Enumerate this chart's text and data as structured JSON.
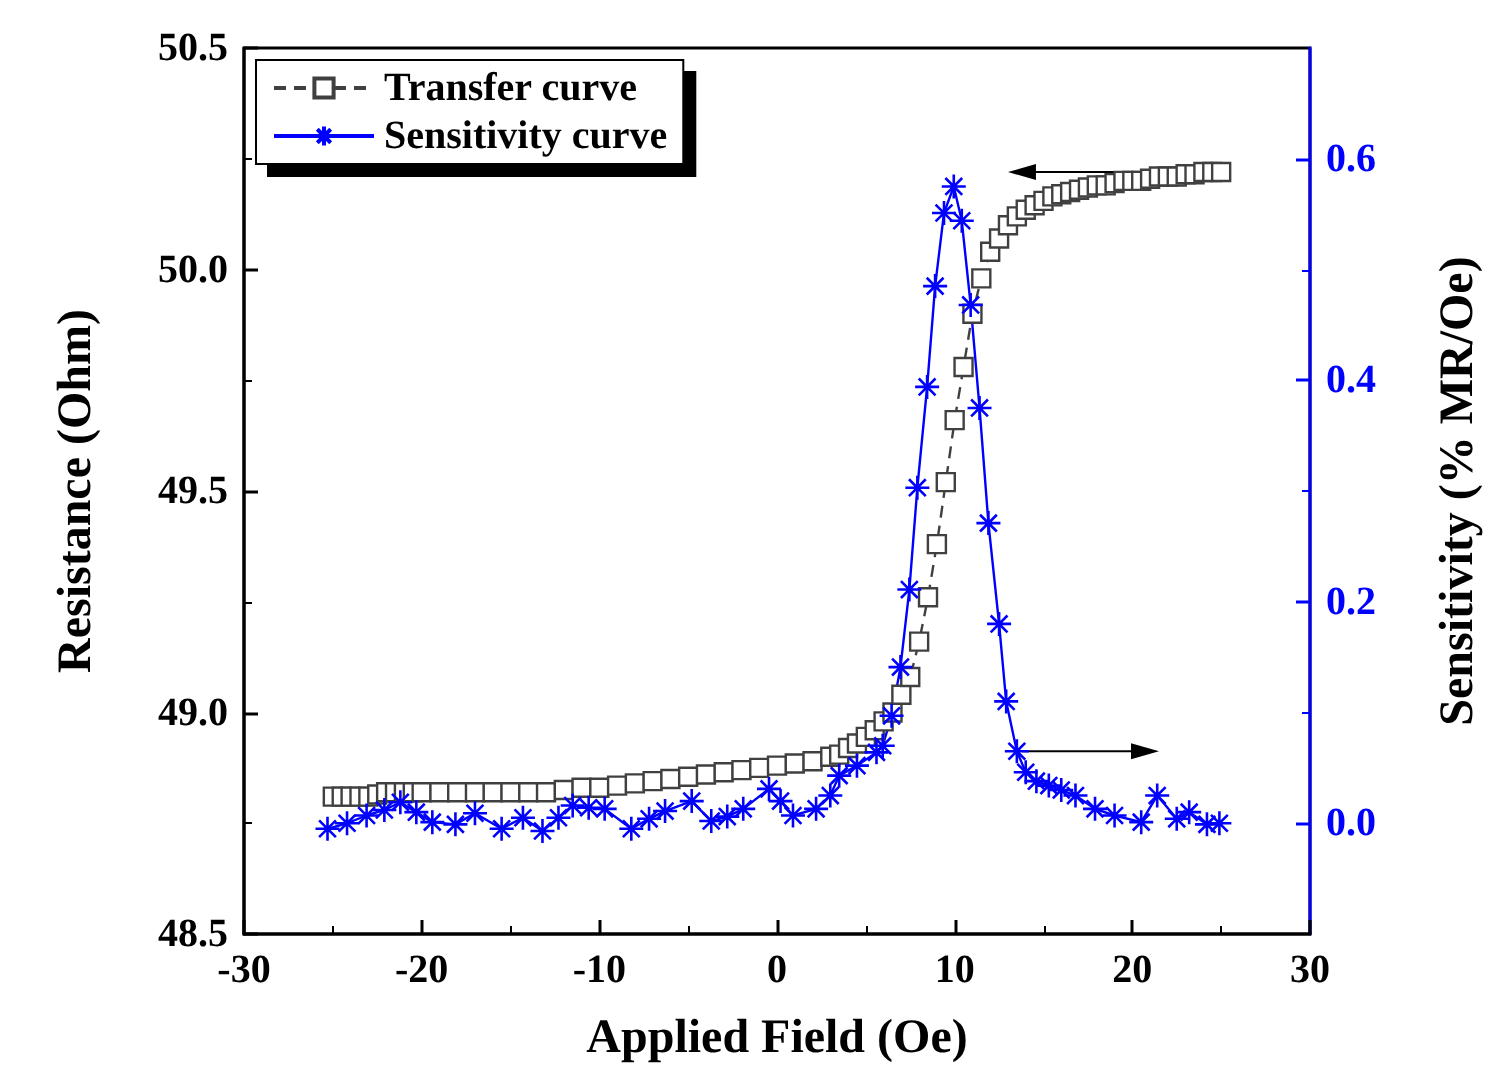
{
  "chart_data": {
    "type": "line",
    "xlabel": "Applied Field (Oe)",
    "ylabel": "Resistance (Ohm)",
    "y2label": "Sensitivity (% MR/Oe)",
    "xlim": [
      -30,
      30
    ],
    "xticks": [
      -30,
      -20,
      -10,
      0,
      10,
      20,
      30
    ],
    "ylim": [
      48.5,
      50.5
    ],
    "yticks": [
      48.5,
      {
        "value": 49,
        "label": "49.0"
      },
      49.5,
      {
        "value": 50,
        "label": "50.0"
      },
      50.5
    ],
    "y2lim": [
      -0.1,
      0.7
    ],
    "y2ticks": [
      {
        "value": 0,
        "label": "0.0"
      },
      0.2,
      0.4,
      0.6
    ],
    "legend": "top left",
    "grid": false,
    "series": [
      {
        "name": "Transfer curve",
        "color": "#404040",
        "marker": "square",
        "line_style": "dashed",
        "x": [
          -25,
          -24.5,
          -24,
          -23.5,
          -23,
          -22.5,
          -22,
          -21.5,
          -21,
          -20.5,
          -20,
          -19,
          -18,
          -17,
          -16,
          -15,
          -14,
          -13,
          -12,
          -11,
          -10,
          -9,
          -8,
          -7,
          -6,
          -5,
          -4,
          -3,
          -2,
          -1,
          0,
          1,
          2,
          3,
          3.5,
          4,
          4.5,
          5,
          5.5,
          6,
          6.5,
          7,
          7.5,
          8,
          8.5,
          9,
          9.5,
          10,
          10.5,
          11,
          11.5,
          12,
          12.5,
          13,
          13.5,
          14,
          14.5,
          15,
          15.5,
          16,
          16.5,
          17,
          17.5,
          18,
          18.5,
          19,
          19.5,
          20,
          20.5,
          21,
          21.5,
          22,
          22.5,
          23,
          23.5,
          24,
          24.5,
          25
        ],
        "values": [
          48.81,
          48.81,
          48.81,
          48.81,
          48.81,
          48.815,
          48.82,
          48.82,
          48.82,
          48.82,
          48.82,
          48.82,
          48.82,
          48.82,
          48.82,
          48.82,
          48.82,
          48.82,
          48.825,
          48.83,
          48.83,
          48.835,
          48.84,
          48.845,
          48.85,
          48.855,
          48.86,
          48.865,
          48.87,
          48.875,
          48.88,
          48.885,
          48.89,
          48.9,
          48.905,
          48.92,
          48.93,
          48.945,
          48.96,
          48.98,
          49.0,
          49.04,
          49.08,
          49.16,
          49.26,
          49.38,
          49.52,
          49.66,
          49.78,
          49.9,
          49.98,
          50.04,
          50.07,
          50.1,
          50.12,
          50.135,
          50.145,
          50.155,
          50.165,
          50.17,
          50.175,
          50.18,
          50.185,
          50.19,
          50.19,
          50.195,
          50.2,
          50.2,
          50.2,
          50.205,
          50.21,
          50.21,
          50.21,
          50.215,
          50.215,
          50.22,
          50.22,
          50.22
        ]
      },
      {
        "name": "Sensitivity curve",
        "color": "#0000ff",
        "marker": "cross",
        "line_style": "solid",
        "axis": "y2",
        "x": [
          -25.3,
          -24.2,
          -23.1,
          -22.1,
          -21.2,
          -20.3,
          -19.4,
          -18.1,
          -17,
          -15.5,
          -14.3,
          -13.2,
          -12.3,
          -11.5,
          -10.6,
          -9.7,
          -8.2,
          -7.2,
          -6.3,
          -4.8,
          -3.7,
          -2.8,
          -1.9,
          -0.45,
          0.2,
          0.9,
          2.2,
          3,
          3.5,
          4.5,
          5.6,
          5.95,
          6.45,
          6.95,
          7.45,
          7.9,
          8.45,
          8.9,
          9.4,
          9.95,
          10.4,
          10.9,
          11.4,
          11.9,
          12.5,
          12.9,
          13.5,
          14,
          14.6,
          15.3,
          16,
          16.8,
          17.9,
          19,
          20.5,
          21.4,
          22.5,
          23.2,
          24.2,
          24.9
        ],
        "values": [
          -0.005,
          0.0,
          0.007,
          0.012,
          0.019,
          0.01,
          0.001,
          -0.001,
          0.009,
          -0.005,
          0.005,
          -0.007,
          0.005,
          0.016,
          0.014,
          0.013,
          -0.005,
          0.004,
          0.011,
          0.02,
          0.002,
          0.006,
          0.013,
          0.031,
          0.02,
          0.007,
          0.013,
          0.025,
          0.043,
          0.052,
          0.064,
          0.07,
          0.097,
          0.141,
          0.211,
          0.303,
          0.394,
          0.485,
          0.551,
          0.575,
          0.544,
          0.468,
          0.375,
          0.271,
          0.18,
          0.11,
          0.065,
          0.046,
          0.038,
          0.034,
          0.03,
          0.025,
          0.013,
          0.007,
          0.001,
          0.025,
          0.004,
          0.01,
          -0.001,
          0.0
        ]
      }
    ]
  }
}
